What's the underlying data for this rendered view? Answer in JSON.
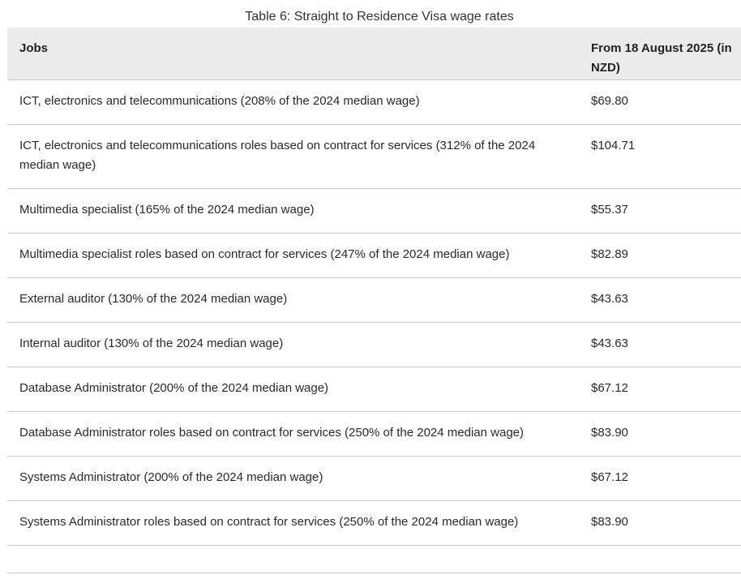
{
  "caption": "Table 6: Straight to Residence Visa wage rates",
  "table": {
    "headers": {
      "jobs": "Jobs",
      "rate": "From 18 August 2025 (in NZD)"
    },
    "rows": [
      {
        "job": "ICT, electronics and telecommunications (208% of the 2024 median wage)",
        "rate": "$69.80"
      },
      {
        "job": "ICT, electronics and telecommunications roles based on contract for services (312% of the 2024 median wage)",
        "rate": "$104.71"
      },
      {
        "job": "Multimedia specialist (165% of the 2024 median wage)",
        "rate": "$55.37"
      },
      {
        "job": "Multimedia specialist roles based on contract for services (247% of the 2024 median wage)",
        "rate": "$82.89"
      },
      {
        "job": "External auditor (130% of the 2024 median wage)",
        "rate": "$43.63"
      },
      {
        "job": "Internal auditor (130% of the 2024 median wage)",
        "rate": "$43.63"
      },
      {
        "job": "Database Administrator (200% of the 2024 median wage)",
        "rate": "$67.12"
      },
      {
        "job": "Database Administrator roles based on contract for services (250% of the 2024 median wage)",
        "rate": "$83.90"
      },
      {
        "job": "Systems Administrator (200% of the 2024 median wage)",
        "rate": "$67.12"
      },
      {
        "job": "Systems Administrator roles based on contract for services (250% of the 2024 median wage)",
        "rate": "$83.90"
      }
    ]
  },
  "colors": {
    "header_background": "#ebebeb",
    "rule": "#c8c8c8",
    "text": "#2a2a2a"
  }
}
